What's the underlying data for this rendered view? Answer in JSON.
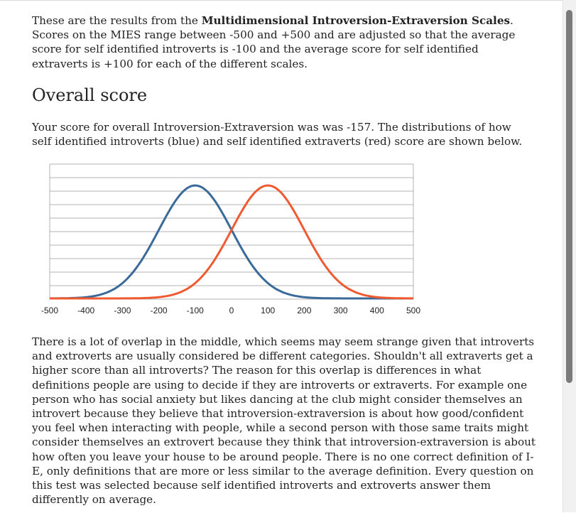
{
  "intro": {
    "text_before": "These are the results from the ",
    "bold": "Multidimensional Introversion-Extraversion Scales",
    "text_after": ". Scores on the MIES range between -500 and +500 and are adjusted so that the average score for self identified introverts is -100 and the average score for self identified extraverts is +100 for each of the different scales."
  },
  "section": {
    "heading": "Overall score"
  },
  "score_text": "Your score for overall Introversion-Extraversion was was -157. The distributions of how self identified introverts (blue) and self identified extraverts (red) score are shown below.",
  "chart_data": {
    "type": "line",
    "title": "",
    "xlabel": "",
    "ylabel": "",
    "xlim": [
      -500,
      500
    ],
    "x_ticks": [
      "-500",
      "-400",
      "-300",
      "-200",
      "-100",
      "0",
      "100",
      "200",
      "300",
      "400",
      "500"
    ],
    "grid": true,
    "series": [
      {
        "color": "#3a6a9a",
        "distribution": "normal",
        "mean": -100,
        "sd": 100,
        "peak": 1.0
      },
      {
        "color": "#f05a30",
        "distribution": "normal",
        "mean": 100,
        "sd": 100,
        "peak": 1.0
      }
    ]
  },
  "overlap_text": "There is a lot of overlap in the middle, which seems may seem strange given that introverts and extroverts are usually considered be different categories. Shouldn't all extraverts get a higher score than all introverts? The reason for this overlap is differences in what definitions people are using to decide if they are introverts or extraverts. For example one person who has social anxiety but likes dancing at the club might consider themselves an introvert because they believe that introversion-extraversion is about how good/confident you feel when interacting with people, while a second person with those same traits might consider themselves an extrovert because they think that introversion-extraversion is about how often you leave your house to be around people. There is no one correct definition of I-E, only definitions that are more or less similar to the average definition. Every question on this test was selected because self identified introverts and extroverts answer them differently on average."
}
